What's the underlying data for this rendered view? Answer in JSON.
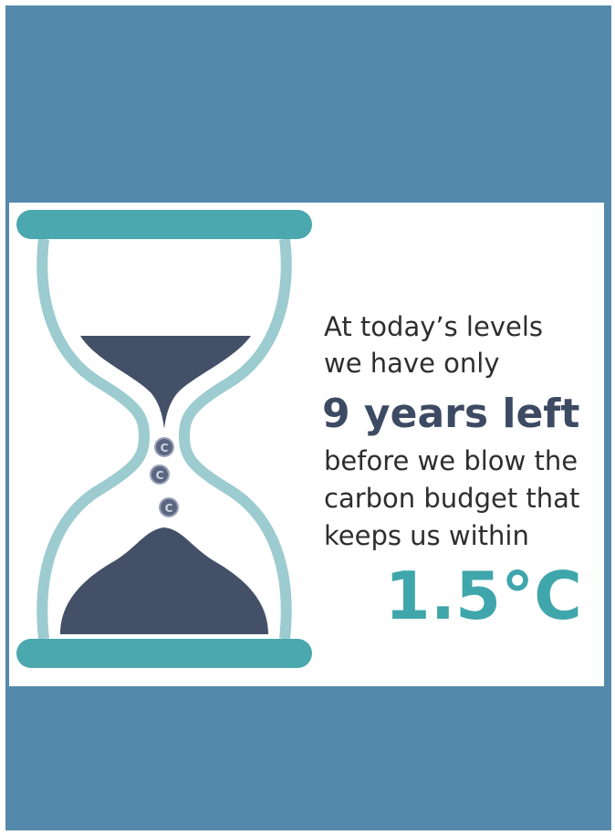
{
  "message": {
    "intro": [
      "At today’s levels",
      "we have only"
    ],
    "emphasis": "9 years left",
    "body": [
      "before we blow the",
      "carbon budget that",
      "keeps us within"
    ],
    "target": "1.5°C",
    "coin_label": "C"
  }
}
